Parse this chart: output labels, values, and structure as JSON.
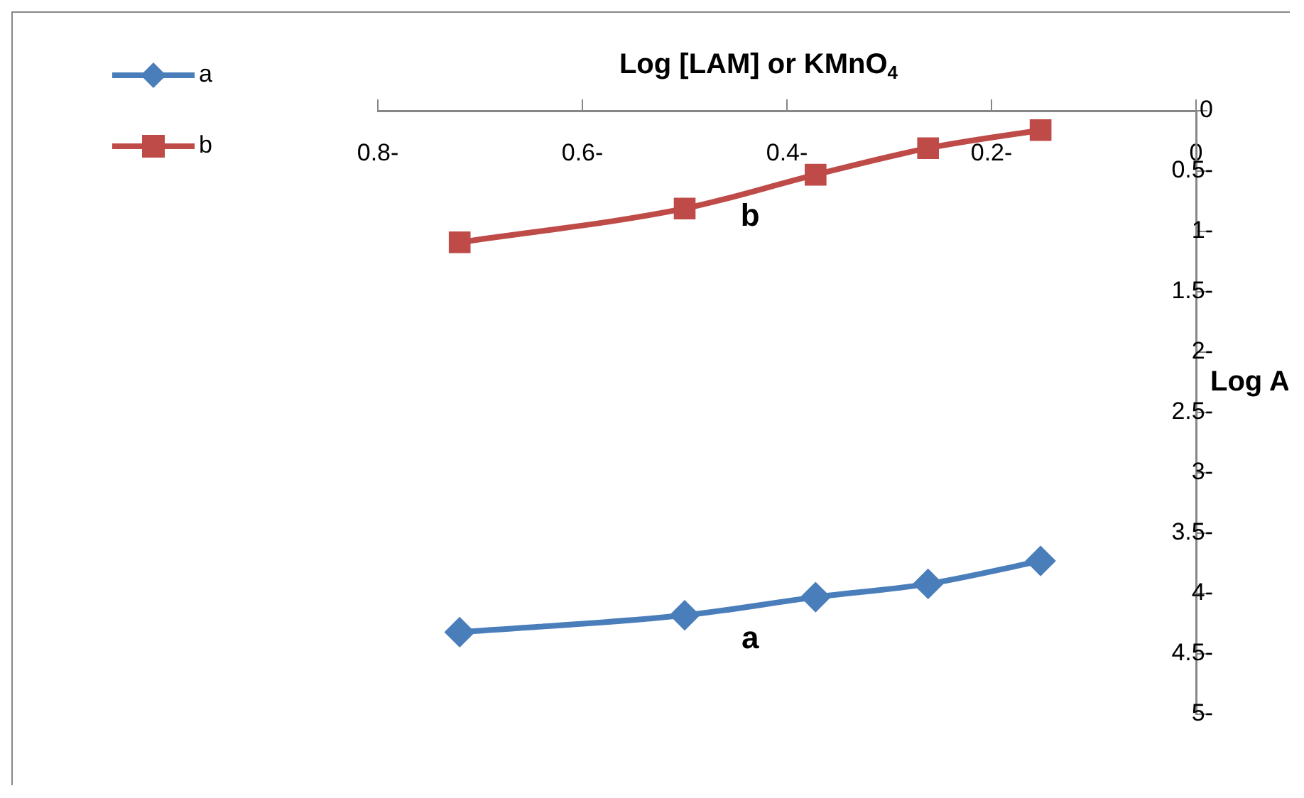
{
  "chart_data": {
    "type": "line",
    "xlabel": "Log [LAM] or KMnO$_{4}$",
    "ylabel": "Log A",
    "x": [
      -0.72,
      -0.5,
      -0.372,
      -0.262,
      -0.152
    ],
    "series": [
      {
        "name": "a",
        "color": "#4a7ebb",
        "marker": "diamond",
        "values": [
          -4.32,
          -4.18,
          -4.03,
          -3.92,
          -3.73
        ]
      },
      {
        "name": "b",
        "color": "#be4b48",
        "marker": "square",
        "values": [
          -1.09,
          -0.81,
          -0.53,
          -0.31,
          -0.16
        ]
      }
    ],
    "xlim": [
      -0.8,
      0
    ],
    "xticks": [
      {
        "value": -0.8,
        "label": "0.8-"
      },
      {
        "value": -0.6,
        "label": "0.6-"
      },
      {
        "value": -0.4,
        "label": "0.4-"
      },
      {
        "value": -0.2,
        "label": "0.2-"
      },
      0
    ],
    "ylim": [
      -5,
      0
    ],
    "yticks": [
      {
        "value": -5,
        "label": "5-"
      },
      {
        "value": -4.5,
        "label": "4.5-"
      },
      {
        "value": -4,
        "label": "4-"
      },
      {
        "value": -3.5,
        "label": "3.5-"
      },
      {
        "value": -3,
        "label": "3-"
      },
      {
        "value": -2.5,
        "label": "2.5-"
      },
      {
        "value": -2,
        "label": "2-"
      },
      {
        "value": -1.5,
        "label": "1.5-"
      },
      {
        "value": -1,
        "label": "1-"
      },
      {
        "value": -0.5,
        "label": "0.5-"
      },
      0
    ],
    "annotations": [
      "a",
      "b"
    ],
    "legend": "top left",
    "grid": false,
    "line_style": "solid"
  }
}
